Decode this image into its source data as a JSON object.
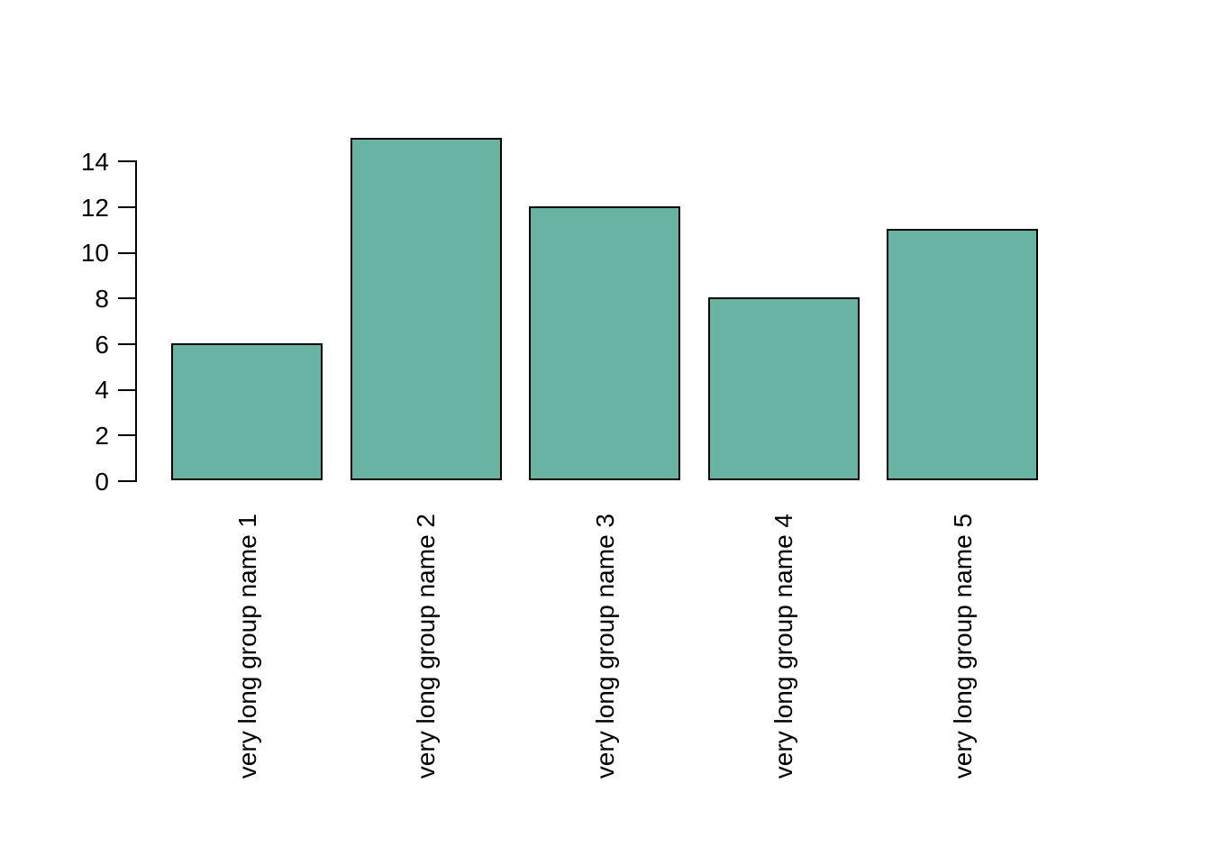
{
  "chart_data": {
    "type": "bar",
    "categories": [
      "very long group name 1",
      "very long group name 2",
      "very long group name 3",
      "very long group name 4",
      "very long group name 5"
    ],
    "values": [
      6,
      15,
      12,
      8,
      11
    ],
    "title": "",
    "xlabel": "",
    "ylabel": "",
    "ylim": [
      0,
      15
    ],
    "yticks": [
      0,
      2,
      4,
      6,
      8,
      10,
      12,
      14
    ],
    "grid": false,
    "legend": "none",
    "x_tick_label_orientation": "vertical",
    "colors": {
      "bar_fill": "#69b3a2",
      "bar_border": "#000000",
      "axis": "#000000",
      "text": "#000000",
      "background": "#ffffff"
    }
  }
}
